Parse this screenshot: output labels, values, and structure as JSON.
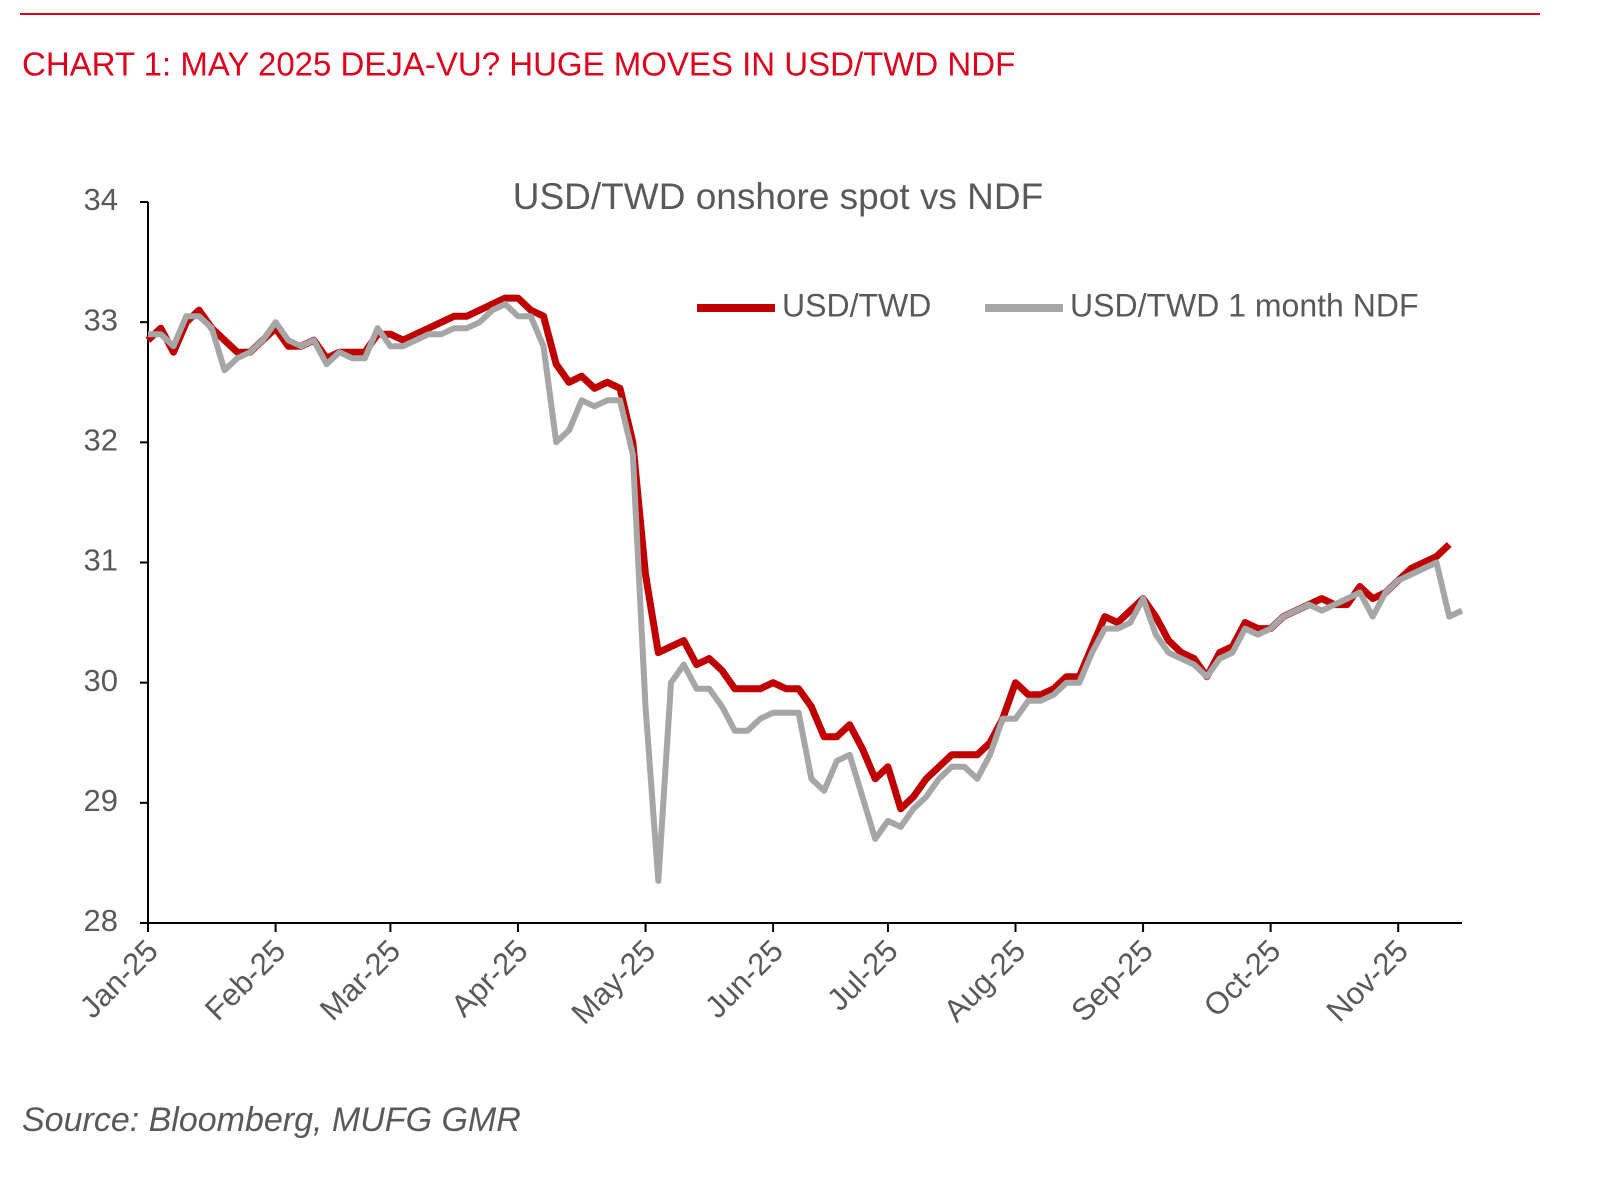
{
  "header": {
    "title": "CHART 1: MAY 2025 DEJA-VU? HUGE MOVES IN USD/TWD NDF"
  },
  "source": "Source: Bloomberg, MUFG GMR",
  "chart_data": {
    "type": "line",
    "title": "USD/TWD onshore spot vs NDF",
    "categories": [
      "Jan-25",
      null,
      null,
      null,
      null,
      null,
      null,
      null,
      null,
      null,
      "Feb-25",
      null,
      null,
      null,
      null,
      null,
      null,
      null,
      null,
      "Mar-25",
      null,
      null,
      null,
      null,
      null,
      null,
      null,
      null,
      null,
      "Apr-25",
      null,
      null,
      null,
      null,
      null,
      null,
      null,
      null,
      null,
      "May-25",
      null,
      null,
      null,
      null,
      null,
      null,
      null,
      null,
      null,
      "Jun-25",
      null,
      null,
      null,
      null,
      null,
      null,
      null,
      null,
      "Jul-25",
      null,
      null,
      null,
      null,
      null,
      null,
      null,
      null,
      null,
      "Aug-25",
      null,
      null,
      null,
      null,
      null,
      null,
      null,
      null,
      null,
      "Sep-25",
      null,
      null,
      null,
      null,
      null,
      null,
      null,
      null,
      null,
      "Oct-25",
      null,
      null,
      null,
      null,
      null,
      null,
      null,
      null,
      null,
      "Nov-25",
      null,
      null,
      null,
      null,
      null
    ],
    "series": [
      {
        "name": "USD/TWD",
        "color": "#c00000",
        "values": [
          32.85,
          32.95,
          32.75,
          33.0,
          33.1,
          32.95,
          32.85,
          32.75,
          32.75,
          32.85,
          32.95,
          32.8,
          32.8,
          32.85,
          32.7,
          32.75,
          32.75,
          32.75,
          32.9,
          32.9,
          32.85,
          32.9,
          32.95,
          33.0,
          33.05,
          33.05,
          33.1,
          33.15,
          33.2,
          33.2,
          33.1,
          33.05,
          32.65,
          32.5,
          32.55,
          32.45,
          32.5,
          32.45,
          32.0,
          30.9,
          30.25,
          30.3,
          30.35,
          30.15,
          30.2,
          30.1,
          29.95,
          29.95,
          29.95,
          30.0,
          29.95,
          29.95,
          29.8,
          29.55,
          29.55,
          29.65,
          29.45,
          29.2,
          29.3,
          28.95,
          29.05,
          29.2,
          29.3,
          29.4,
          29.4,
          29.4,
          29.5,
          29.7,
          30.0,
          29.9,
          29.9,
          29.95,
          30.05,
          30.05,
          30.3,
          30.55,
          30.5,
          30.6,
          30.7,
          30.55,
          30.35,
          30.25,
          30.2,
          30.05,
          30.25,
          30.3,
          30.5,
          30.45,
          30.45,
          30.55,
          30.6,
          30.65,
          30.7,
          30.65,
          30.65,
          30.8,
          30.7,
          30.75,
          30.85,
          30.95,
          31.0,
          31.05,
          31.15,
          null
        ]
      },
      {
        "name": "USD/TWD 1 month NDF",
        "color": "#a6a6a6",
        "values": [
          32.9,
          32.9,
          32.8,
          33.05,
          33.05,
          32.95,
          32.6,
          32.7,
          32.75,
          32.85,
          33.0,
          32.85,
          32.8,
          32.85,
          32.65,
          32.75,
          32.7,
          32.7,
          32.95,
          32.8,
          32.8,
          32.85,
          32.9,
          32.9,
          32.95,
          32.95,
          33.0,
          33.1,
          33.15,
          33.05,
          33.05,
          32.8,
          32.0,
          32.1,
          32.35,
          32.3,
          32.35,
          32.35,
          31.9,
          29.8,
          28.35,
          30.0,
          30.15,
          29.95,
          29.95,
          29.8,
          29.6,
          29.6,
          29.7,
          29.75,
          29.75,
          29.75,
          29.2,
          29.1,
          29.35,
          29.4,
          29.05,
          28.7,
          28.85,
          28.8,
          28.95,
          29.05,
          29.2,
          29.3,
          29.3,
          29.2,
          29.4,
          29.7,
          29.7,
          29.85,
          29.85,
          29.9,
          30.0,
          30.0,
          30.25,
          30.45,
          30.45,
          30.5,
          30.7,
          30.4,
          30.25,
          30.2,
          30.15,
          30.05,
          30.2,
          30.25,
          30.45,
          30.4,
          30.45,
          30.55,
          30.6,
          30.65,
          30.6,
          30.65,
          30.7,
          30.75,
          30.55,
          30.75,
          30.85,
          30.9,
          30.95,
          31.0,
          30.55,
          30.6
        ]
      }
    ],
    "ylim": [
      28,
      34
    ],
    "yticks": [
      28,
      29,
      30,
      31,
      32,
      33,
      34
    ],
    "grid": false,
    "legend": "upper right"
  }
}
